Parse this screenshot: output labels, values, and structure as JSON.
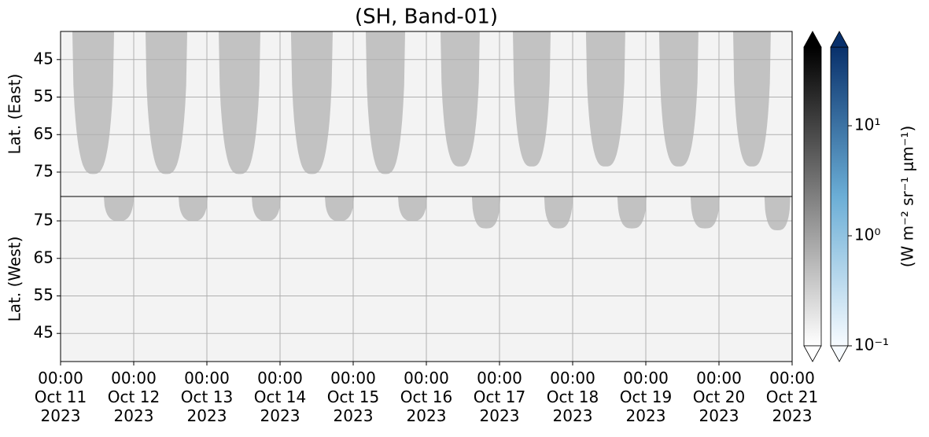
{
  "chart_data": {
    "type": "heatmap",
    "title": "(SH, Band-01)",
    "xlim": [
      "2023-10-11 00:00",
      "2023-10-21 00:00"
    ],
    "xticks": [
      {
        "value": "2023-10-11 00:00",
        "label": [
          "00:00",
          "Oct 11",
          "2023"
        ]
      },
      {
        "value": "2023-10-12 00:00",
        "label": [
          "00:00",
          "Oct 12",
          "2023"
        ]
      },
      {
        "value": "2023-10-13 00:00",
        "label": [
          "00:00",
          "Oct 13",
          "2023"
        ]
      },
      {
        "value": "2023-10-14 00:00",
        "label": [
          "00:00",
          "Oct 14",
          "2023"
        ]
      },
      {
        "value": "2023-10-15 00:00",
        "label": [
          "00:00",
          "Oct 15",
          "2023"
        ]
      },
      {
        "value": "2023-10-16 00:00",
        "label": [
          "00:00",
          "Oct 16",
          "2023"
        ]
      },
      {
        "value": "2023-10-17 00:00",
        "label": [
          "00:00",
          "Oct 17",
          "2023"
        ]
      },
      {
        "value": "2023-10-18 00:00",
        "label": [
          "00:00",
          "Oct 18",
          "2023"
        ]
      },
      {
        "value": "2023-10-19 00:00",
        "label": [
          "00:00",
          "Oct 19",
          "2023"
        ]
      },
      {
        "value": "2023-10-20 00:00",
        "label": [
          "00:00",
          "Oct 20",
          "2023"
        ]
      },
      {
        "value": "2023-10-21 00:00",
        "label": [
          "00:00",
          "Oct 21",
          "2023"
        ]
      }
    ],
    "grid": true,
    "swath_color": "#c2c2c2",
    "background_color": "#f3f3f3",
    "panels": [
      {
        "ylabel": "Lat. (East)",
        "ylim": [
          37.5,
          81.5
        ],
        "yticks": [
          45,
          55,
          65,
          75
        ],
        "swaths": [
          {
            "start": "2023-10-11 03:52",
            "end": "2023-10-11 17:33",
            "lat": 75.5
          },
          {
            "start": "2023-10-12 03:52",
            "end": "2023-10-12 17:33",
            "lat": 75.5
          },
          {
            "start": "2023-10-13 03:52",
            "end": "2023-10-13 17:33",
            "lat": 75.5
          },
          {
            "start": "2023-10-14 03:36",
            "end": "2023-10-14 17:17",
            "lat": 75.5
          },
          {
            "start": "2023-10-15 04:08",
            "end": "2023-10-15 17:02",
            "lat": 75.5
          },
          {
            "start": "2023-10-16 04:39",
            "end": "2023-10-16 17:32",
            "lat": 73.5
          },
          {
            "start": "2023-10-17 04:23",
            "end": "2023-10-17 16:46",
            "lat": 73.5
          },
          {
            "start": "2023-10-18 04:22",
            "end": "2023-10-18 17:16",
            "lat": 73.5
          },
          {
            "start": "2023-10-19 04:22",
            "end": "2023-10-19 17:16",
            "lat": 73.5
          },
          {
            "start": "2023-10-20 04:38",
            "end": "2023-10-20 17:00",
            "lat": 73.5
          }
        ]
      },
      {
        "ylabel": "Lat. (West)",
        "ylim": [
          81.5,
          37.5
        ],
        "yticks": [
          45,
          55,
          65,
          75
        ],
        "swaths": [
          {
            "start": "2023-10-11 14:11",
            "end": "2023-10-12 00:00",
            "lat": 75
          },
          {
            "start": "2023-10-12 14:42",
            "end": "2023-10-13 00:15",
            "lat": 75
          },
          {
            "start": "2023-10-13 14:42",
            "end": "2023-10-14 00:15",
            "lat": 75
          },
          {
            "start": "2023-10-14 14:42",
            "end": "2023-10-15 00:15",
            "lat": 75
          },
          {
            "start": "2023-10-15 14:42",
            "end": "2023-10-16 00:14",
            "lat": 75
          },
          {
            "start": "2023-10-16 14:56",
            "end": "2023-10-17 00:17",
            "lat": 73
          },
          {
            "start": "2023-10-17 14:40",
            "end": "2023-10-18 00:00",
            "lat": 73
          },
          {
            "start": "2023-10-18 14:40",
            "end": "2023-10-19 00:13",
            "lat": 73
          },
          {
            "start": "2023-10-19 14:40",
            "end": "2023-10-20 00:13",
            "lat": 73
          },
          {
            "start": "2023-10-20 14:55",
            "end": "2023-10-20 23:25",
            "lat": 72.5
          }
        ]
      }
    ],
    "colorbars": [
      {
        "colors": [
          "#ffffff",
          "#000000"
        ],
        "clim": [
          0.1,
          51.8
        ],
        "log": true
      },
      {
        "colors": [
          "#f7fbff",
          "#6baed6",
          "#08306b"
        ],
        "clim": [
          0.1,
          51.8
        ],
        "log": true,
        "ticks": [
          {
            "value": 0.1,
            "label": "10⁻¹"
          },
          {
            "value": 1,
            "label": "10⁰"
          },
          {
            "value": 10,
            "label": "10¹"
          }
        ]
      }
    ],
    "colorbar_label": "(W m⁻² sr⁻¹ μm⁻¹)"
  }
}
